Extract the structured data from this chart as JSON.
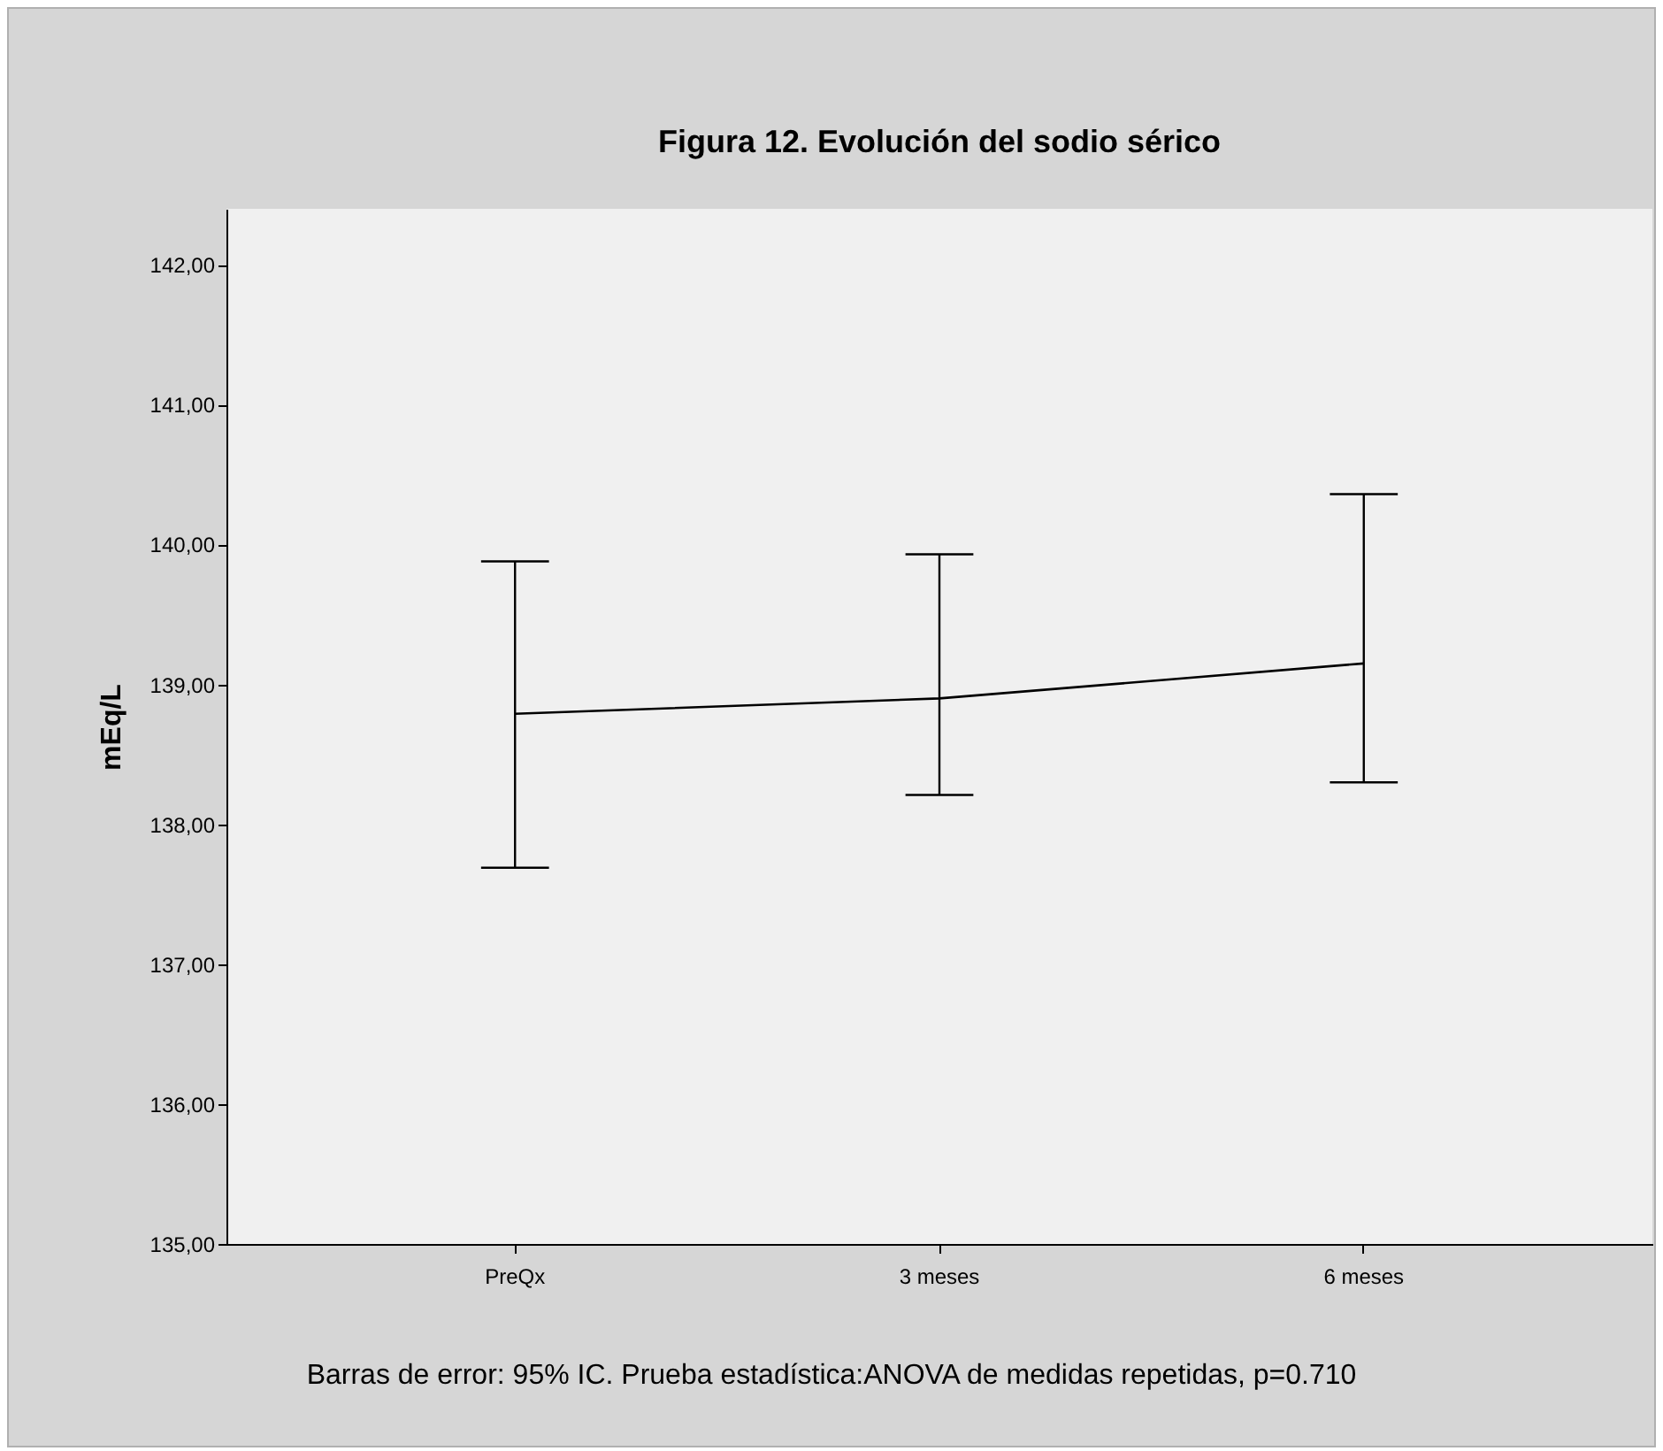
{
  "chart_data": {
    "type": "line",
    "title": "Figura 12. Evolución del sodio sérico",
    "ylabel": "mEq/L",
    "categories": [
      "PreQx",
      "3 meses",
      "6 meses"
    ],
    "color": "#000000",
    "values": [
      138.79,
      138.9,
      139.15
    ],
    "errors": [
      [
        137.69,
        139.88
      ],
      [
        138.21,
        139.93
      ],
      [
        138.3,
        140.36
      ]
    ],
    "ylim": [
      135,
      142.4
    ],
    "yticks": [
      {
        "value": 135,
        "label": "135,00"
      },
      {
        "value": 136,
        "label": "136,00"
      },
      {
        "value": 137,
        "label": "137,00"
      },
      {
        "value": 138,
        "label": "138,00"
      },
      {
        "value": 139,
        "label": "139,00"
      },
      {
        "value": 140,
        "label": "140,00"
      },
      {
        "value": 141,
        "label": "141,00"
      },
      {
        "value": 142,
        "label": "142,00"
      }
    ],
    "grid": false,
    "marker": "none",
    "line_style": "solid",
    "annotations": [
      "Barras de error: 95% IC. Prueba estadística:ANOVA de medidas repetidas, p=0.710"
    ]
  }
}
